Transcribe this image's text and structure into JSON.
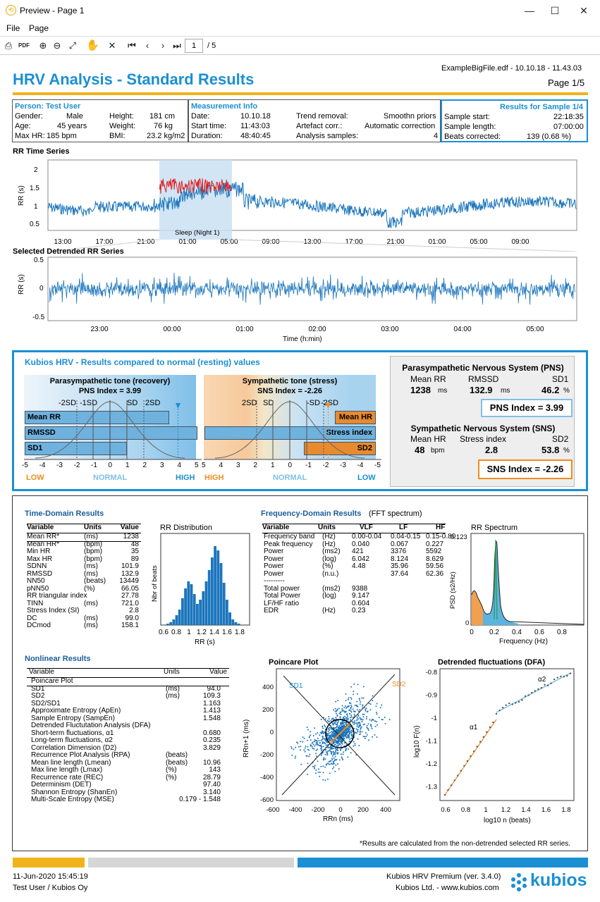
{
  "window": {
    "title": "Preview - Page 1",
    "min": "—",
    "max": "☐",
    "close": "✕"
  },
  "menu": {
    "file": "File",
    "page": "Page"
  },
  "toolbar": {
    "page_value": "1",
    "page_total": "/ 5"
  },
  "header": {
    "file": "ExampleBigFile.edf - 10.10.18 - 11.43.03",
    "page": "Page 1/5",
    "title": "HRV Analysis - Standard Results"
  },
  "person": {
    "head": "Person: Test User",
    "gender_l": "Gender:",
    "gender": "Male",
    "age_l": "Age:",
    "age": "45 years",
    "maxhr_l": "Max HR:",
    "maxhr": "185 bpm",
    "height_l": "Height:",
    "height": "181 cm",
    "weight_l": "Weight:",
    "weight": "76 kg",
    "bmi_l": "BMI:",
    "bmi": "23.2 kg/m2"
  },
  "meas": {
    "head": "Measurement Info",
    "date_l": "Date:",
    "date": "10.10.18",
    "start_l": "Start time:",
    "start": "11:43:03",
    "dur_l": "Duration:",
    "dur": "48:40:45",
    "trend_l": "Trend removal:",
    "trend": "Smoothn priors",
    "art_l": "Artefact corr.:",
    "art": "Automatic correction",
    "samp_l": "Analysis samples:",
    "samp": "4"
  },
  "results": {
    "head": "Results for Sample 1/4",
    "ss_l": "Sample start:",
    "ss": "22:18:35",
    "sl_l": "Sample length:",
    "sl": "07:00:00",
    "bc_l": "Beats corrected:",
    "bc": "139 (0.68 %)"
  },
  "rr": {
    "title": "RR Time Series",
    "ylabel": "RR (s)",
    "yticks": [
      "2",
      "1.5",
      "1",
      "0.5"
    ],
    "xticks": [
      "13:00",
      "17:00",
      "21:00",
      "01:00",
      "05:00",
      "09:00",
      "13:00",
      "17:00",
      "21:00",
      "01:00",
      "05:00",
      "09:00"
    ],
    "sleep": "Sleep (Night 1)"
  },
  "det": {
    "title": "Selected Detrended RR Series",
    "ylabel": "RR (s)",
    "yticks": [
      "0.5",
      "0",
      "-0.5"
    ],
    "xticks": [
      "23:00",
      "00:00",
      "01:00",
      "02:00",
      "03:00",
      "04:00",
      "05:00"
    ],
    "xlabel": "Time (h:min)"
  },
  "kubios": {
    "title": "Kubios HRV - Results compared to normal (resting) values",
    "pns_head": "Parasympathetic tone (recovery)",
    "pns_idx": "PNS Index = 3.99",
    "sns_head": "Sympathetic tone (stress)",
    "sns_idx": "SNS Index = -2.26",
    "l_sd": [
      "-2SD",
      "-1SD",
      "SD",
      "2SD"
    ],
    "r_sd": [
      "2SD",
      "SD",
      "-SD",
      "-2SD"
    ],
    "bars_l": [
      "Mean RR",
      "RMSSD",
      "SD1"
    ],
    "bars_r": [
      "Mean HR",
      "Stress index",
      "SD2"
    ],
    "lx": [
      "-5",
      "-4",
      "-3",
      "-2",
      "-1",
      "0",
      "1",
      "2",
      "3",
      "4",
      "5"
    ],
    "rx": [
      "5",
      "4",
      "3",
      "2",
      "1",
      "0",
      "-1",
      "-2",
      "-3",
      "-4",
      "-5"
    ],
    "low": "LOW",
    "normal": "NORMAL",
    "high": "HIGH",
    "pns_sys": "Parasympathetic Nervous System (PNS)",
    "pns_cols": [
      "Mean RR",
      "RMSSD",
      "SD1"
    ],
    "pns_vals": [
      "1238",
      "132.9",
      "46.2"
    ],
    "pns_units": [
      "ms",
      "ms",
      "%"
    ],
    "pns_box": "PNS Index = 3.99",
    "sns_sys": "Sympathetic Nervous System (SNS)",
    "sns_cols": [
      "Mean HR",
      "Stress index",
      "SD2"
    ],
    "sns_vals": [
      "48",
      "2.8",
      "53.8"
    ],
    "sns_units": [
      "bpm",
      "",
      "%"
    ],
    "sns_box": "SNS Index = -2.26",
    "colors": {
      "blue": "#1b8fd3",
      "orange": "#f08c1e",
      "green": "#2a9d4a"
    }
  },
  "time": {
    "title": "Time-Domain Results",
    "head": [
      "Variable",
      "Units",
      "Value"
    ],
    "rows": [
      [
        "Mean RR*",
        "(ms)",
        "1238"
      ],
      [
        "Mean HR*",
        "(bpm)",
        "48"
      ],
      [
        "Min HR",
        "(bpm)",
        "35"
      ],
      [
        "Max HR",
        "(bpm)",
        "89"
      ],
      [
        "SDNN",
        "(ms)",
        "101.9"
      ],
      [
        "RMSSD",
        "(ms)",
        "132.9"
      ],
      [
        "NN50",
        "(beats)",
        "13449"
      ],
      [
        "pNN50",
        "(%)",
        "66.05"
      ],
      [
        "RR triangular index",
        "",
        "27.78"
      ],
      [
        "TINN",
        "(ms)",
        "721.0"
      ],
      [
        "Stress Index (SI)",
        "",
        "2.8"
      ],
      [
        "DC",
        "(ms)",
        "99.0"
      ],
      [
        "DCmod",
        "(ms)",
        "158.1"
      ]
    ]
  },
  "rrdist": {
    "title": "RR Distribution",
    "ylabel": "Nbr of beats",
    "xlabel": "RR (s)",
    "xticks": [
      "0.6",
      "0.8",
      "1",
      "1.2",
      "1.4",
      "1.6",
      "1.8"
    ]
  },
  "freq": {
    "title": "Frequency-Domain Results",
    "sub": "(FFT spectrum)",
    "head": [
      "Variable",
      "Units",
      "VLF",
      "LF",
      "HF"
    ],
    "rows": [
      [
        "Frequency band",
        "(Hz)",
        "0.00-0.04",
        "0.04-0.15",
        "0.15-0.80"
      ],
      [
        "Peak frequency",
        "(Hz)",
        "0.040",
        "0.067",
        "0.227"
      ],
      [
        "Power",
        "(ms2)",
        "421",
        "3376",
        "5592"
      ],
      [
        "Power",
        "(log)",
        "6.042",
        "8.124",
        "8.629"
      ],
      [
        "Power",
        "(%)",
        "4.48",
        "35.96",
        "59.56"
      ],
      [
        "Power",
        "(n.u.)",
        "",
        "37.64",
        "62.36"
      ],
      [
        "---------",
        "",
        "",
        "",
        ""
      ],
      [
        "Total power",
        "(ms2)",
        "9388",
        "",
        ""
      ],
      [
        "Total Power",
        "(log)",
        "9.147",
        "",
        ""
      ],
      [
        "LF/HF ratio",
        "",
        "0.604",
        "",
        ""
      ],
      [
        "EDR",
        "(Hz)",
        "0.23",
        "",
        ""
      ]
    ]
  },
  "spec": {
    "title": "RR Spectrum",
    "ylabel": "PSD (s2/Hz)",
    "xlabel": "Frequency (Hz)",
    "ytop": "0.123",
    "y0": "0",
    "xticks": [
      "0",
      "0.2",
      "0.4",
      "0.6",
      "0.8"
    ]
  },
  "nonlin": {
    "title": "Nonlinear Results",
    "head": [
      "Variable",
      "Units",
      "Value"
    ],
    "rows": [
      [
        "Poincare Plot",
        "",
        ""
      ],
      [
        "SD1",
        "(ms)",
        "94.0"
      ],
      [
        "SD2",
        "(ms)",
        "109.3"
      ],
      [
        "SD2/SD1",
        "",
        "1.163"
      ],
      [
        "Approximate Entropy (ApEn)",
        "",
        "1.413"
      ],
      [
        "Sample Entropy (SampEn)",
        "",
        "1.548"
      ],
      [
        "Detrended Fluctutation Analysis (DFA)",
        "",
        ""
      ],
      [
        "Short-term fluctuations, α1",
        "",
        "0.680"
      ],
      [
        "Long-term fluctuations, α2",
        "",
        "0.235"
      ],
      [
        "Correlation Dimension (D2)",
        "",
        "3.829"
      ],
      [
        "Recurrence Plot Analysis (RPA)",
        "(beats)",
        ""
      ],
      [
        "Mean line length (Lmean)",
        "(beats)",
        "10.96"
      ],
      [
        "Max line length (Lmax)",
        "(%)",
        "143"
      ],
      [
        "Recurrence rate (REC)",
        "(%)",
        "28.79"
      ],
      [
        "Determinism (DET)",
        "",
        "97.40"
      ],
      [
        "Shannon Entropy (ShanEn)",
        "",
        "3.140"
      ],
      [
        "Multi-Scale Entropy (MSE)",
        "",
        "0.179 - 1.548"
      ]
    ]
  },
  "poincare": {
    "title": "Poincare Plot",
    "ylabel": "RRn+1 (ms)",
    "xlabel": "RRn (ms)",
    "sd1": "SD1",
    "sd2": "SD2",
    "yticks": [
      "400",
      "200",
      "0",
      "-200",
      "-400",
      "-600"
    ],
    "xticks": [
      "-600",
      "-400",
      "-200",
      "0",
      "200",
      "400"
    ]
  },
  "dfa": {
    "title": "Detrended fluctuations (DFA)",
    "ylabel": "log10 F(n)",
    "xlabel": "log10 n (beats)",
    "a1": "α1",
    "a2": "α2",
    "yticks": [
      "-0.8",
      "-0.9",
      "-1",
      "-1.1",
      "-1.2",
      "-1.3"
    ],
    "xticks": [
      "0.6",
      "0.8",
      "1",
      "1.2",
      "1.4",
      "1.6",
      "1.8"
    ]
  },
  "note": "*Results are calculated from the non-detrended selected RR series.",
  "footer": {
    "date": "11-Jun-2020 15:45:19",
    "user": "Test User / Kubios Oy",
    "ver": "Kubios HRV Premium (ver. 3.4.0)",
    "co": "Kubios Ltd. - www.kubios.com",
    "logo": "kubios"
  }
}
